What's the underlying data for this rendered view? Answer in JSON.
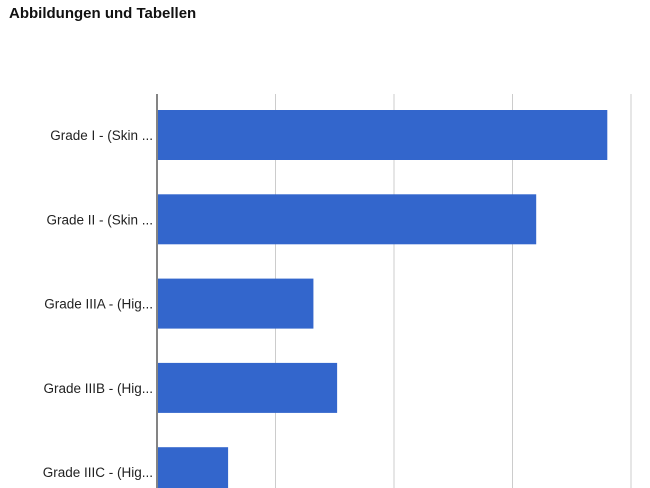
{
  "page": {
    "title": "Abbildungen und Tabellen"
  },
  "chart_data": {
    "type": "bar",
    "orientation": "horizontal",
    "categories": [
      "Grade I - (Skin ...",
      "Grade II - (Skin ...",
      "Grade IIIA - (Hig...",
      "Grade IIIB - (Hig...",
      "Grade IIIC - (Hig..."
    ],
    "values": [
      19,
      16,
      6.6,
      7.6,
      3
    ],
    "xlim": [
      0,
      20
    ],
    "grid": true,
    "bar_color": "#3366cc"
  }
}
